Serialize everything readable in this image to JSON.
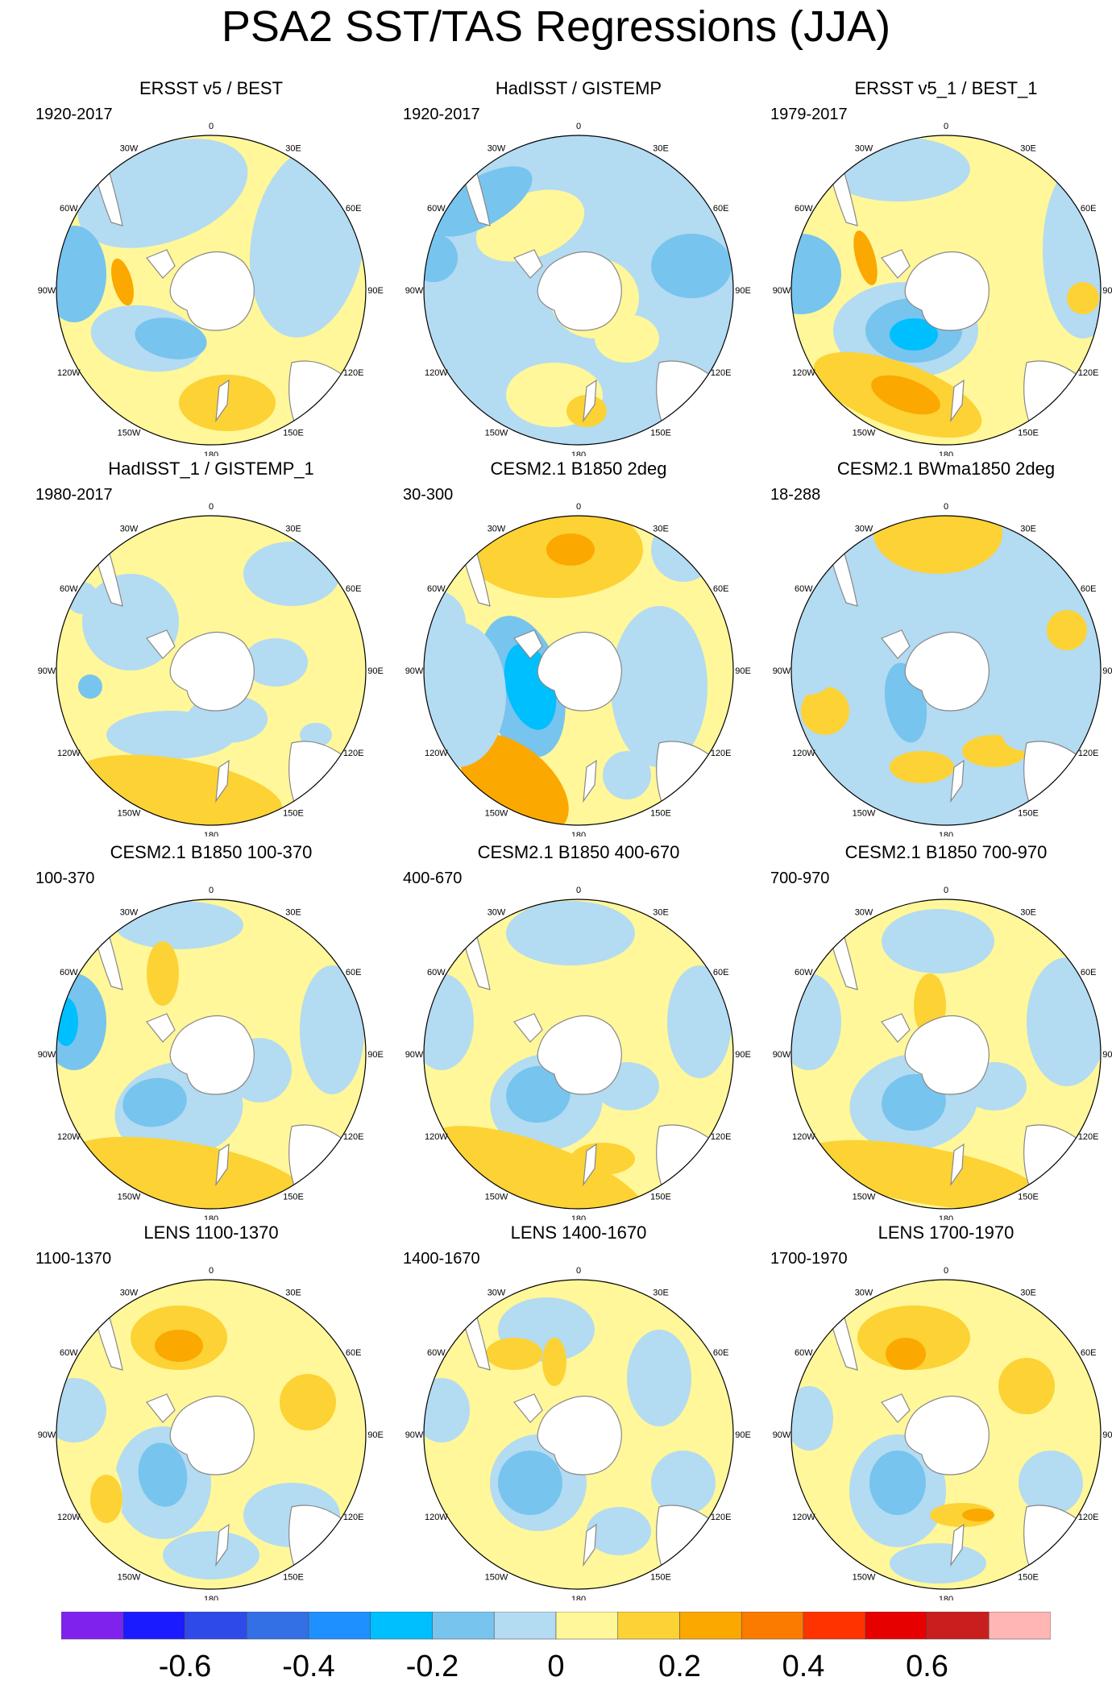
{
  "title": "PSA2 SST/TAS Regressions (JJA)",
  "colors": {
    "c_neg06": "#7f22ee",
    "c_neg055": "#1b1bff",
    "c_neg05": "#2e4ae8",
    "c_neg045": "#3370e6",
    "c_neg04": "#1e90ff",
    "c_neg03": "#00bfff",
    "c_neg02": "#77c4ee",
    "c_neg01": "#b3dbf2",
    "c_pos0": "#fff799",
    "c_pos01": "#fcd235",
    "c_pos02": "#fba800",
    "c_pos03": "#fb7a00",
    "c_pos04": "#ff3300",
    "c_pos05": "#e60000",
    "c_pos06": "#c81e1e",
    "c_pos07": "#ffb6b4",
    "land": "#ffffff",
    "coast": "#888888"
  },
  "lon_labels": [
    "0",
    "30E",
    "60E",
    "90E",
    "120E",
    "150E",
    "180",
    "150W",
    "120W",
    "90W",
    "60W",
    "30W"
  ],
  "panels": [
    {
      "title": "ERSST v5 / BEST",
      "period": "1920-2017"
    },
    {
      "title": "HadISST / GISTEMP",
      "period": "1920-2017"
    },
    {
      "title": "ERSST v5_1 / BEST_1",
      "period": "1979-2017"
    },
    {
      "title": "HadISST_1 / GISTEMP_1",
      "period": "1980-2017"
    },
    {
      "title": "CESM2.1 B1850 2deg",
      "period": "30-300"
    },
    {
      "title": "CESM2.1 BWma1850 2deg",
      "period": "18-288"
    },
    {
      "title": "CESM2.1 B1850 100-370",
      "period": "100-370"
    },
    {
      "title": "CESM2.1 B1850 400-670",
      "period": "400-670"
    },
    {
      "title": "CESM2.1 B1850 700-970",
      "period": "700-970"
    },
    {
      "title": "LENS 1100-1370",
      "period": "1100-1370"
    },
    {
      "title": "LENS 1400-1670",
      "period": "1400-1670"
    },
    {
      "title": "LENS 1700-1970",
      "period": "1700-1970"
    }
  ],
  "colorbar": {
    "colors": [
      "#7f22ee",
      "#1b1bff",
      "#2e4ae8",
      "#3370e6",
      "#1e90ff",
      "#00bfff",
      "#77c4ee",
      "#b3dbf2",
      "#fff799",
      "#fcd235",
      "#fba800",
      "#fb7a00",
      "#ff3300",
      "#e60000",
      "#c81e1e",
      "#ffb6b4"
    ],
    "labels": [
      {
        "text": "-0.6",
        "index": 2
      },
      {
        "text": "-0.4",
        "index": 4
      },
      {
        "text": "-0.2",
        "index": 6
      },
      {
        "text": "0",
        "index": 8
      },
      {
        "text": "0.2",
        "index": 10
      },
      {
        "text": "0.4",
        "index": 12
      },
      {
        "text": "0.6",
        "index": 14
      }
    ]
  }
}
